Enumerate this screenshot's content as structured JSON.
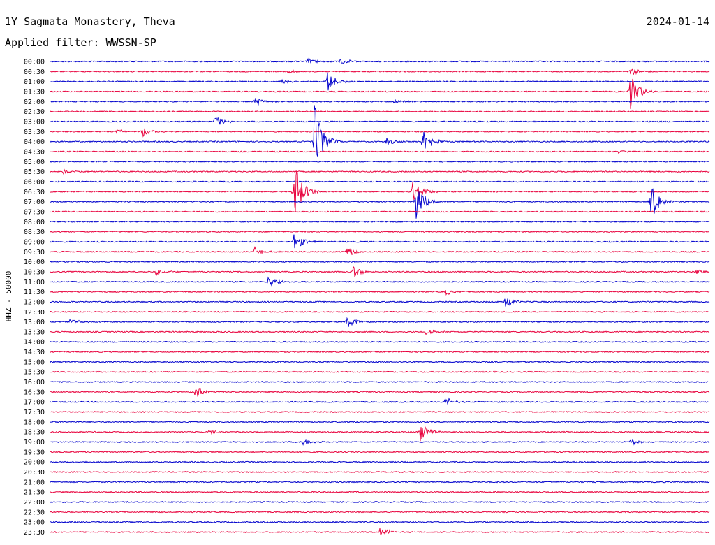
{
  "header": {
    "title": "1Y Sagmata Monastery, Theva",
    "date": "2024-01-14",
    "filter": "Applied filter: WWSSN-SP"
  },
  "chart_data": {
    "type": "line",
    "title": "1Y Sagmata Monastery, Theva",
    "ylabel": "HHZ - 50000",
    "colors": [
      "#0000cc",
      "#e8003c"
    ],
    "rows": [
      "00:00",
      "00:30",
      "01:00",
      "01:30",
      "02:00",
      "02:30",
      "03:00",
      "03:30",
      "04:00",
      "04:30",
      "05:00",
      "05:30",
      "06:00",
      "06:30",
      "07:00",
      "07:30",
      "08:00",
      "08:30",
      "09:00",
      "09:30",
      "10:00",
      "10:30",
      "11:00",
      "11:30",
      "12:00",
      "12:30",
      "13:00",
      "13:30",
      "14:00",
      "14:30",
      "15:00",
      "15:30",
      "16:00",
      "16:30",
      "17:00",
      "17:30",
      "18:00",
      "18:30",
      "19:00",
      "19:30",
      "20:00",
      "20:30",
      "21:00",
      "21:30",
      "22:00",
      "22:30",
      "23:00",
      "23:30"
    ],
    "events": [
      {
        "row": 0,
        "t": 0.39,
        "amp": 5
      },
      {
        "row": 0,
        "t": 0.44,
        "amp": 6
      },
      {
        "row": 1,
        "t": 0.88,
        "amp": 7
      },
      {
        "row": 1,
        "t": 0.36,
        "amp": 3
      },
      {
        "row": 2,
        "t": 0.35,
        "amp": 4
      },
      {
        "row": 2,
        "t": 0.42,
        "amp": 16
      },
      {
        "row": 3,
        "t": 0.88,
        "amp": 28
      },
      {
        "row": 4,
        "t": 0.31,
        "amp": 7
      },
      {
        "row": 4,
        "t": 0.52,
        "amp": 4
      },
      {
        "row": 6,
        "t": 0.25,
        "amp": 10
      },
      {
        "row": 7,
        "t": 0.1,
        "amp": 4
      },
      {
        "row": 7,
        "t": 0.14,
        "amp": 8
      },
      {
        "row": 8,
        "t": 0.4,
        "amp": 60
      },
      {
        "row": 8,
        "t": 0.51,
        "amp": 6
      },
      {
        "row": 8,
        "t": 0.565,
        "amp": 22
      },
      {
        "row": 9,
        "t": 0.86,
        "amp": 3
      },
      {
        "row": 11,
        "t": 0.02,
        "amp": 4
      },
      {
        "row": 13,
        "t": 0.37,
        "amp": 45
      },
      {
        "row": 13,
        "t": 0.55,
        "amp": 20
      },
      {
        "row": 14,
        "t": 0.555,
        "amp": 30
      },
      {
        "row": 14,
        "t": 0.91,
        "amp": 30
      },
      {
        "row": 18,
        "t": 0.37,
        "amp": 14
      },
      {
        "row": 19,
        "t": 0.31,
        "amp": 7
      },
      {
        "row": 19,
        "t": 0.45,
        "amp": 7
      },
      {
        "row": 21,
        "t": 0.16,
        "amp": 5
      },
      {
        "row": 21,
        "t": 0.46,
        "amp": 9
      },
      {
        "row": 21,
        "t": 0.98,
        "amp": 4
      },
      {
        "row": 22,
        "t": 0.33,
        "amp": 10
      },
      {
        "row": 23,
        "t": 0.6,
        "amp": 5
      },
      {
        "row": 24,
        "t": 0.69,
        "amp": 9
      },
      {
        "row": 26,
        "t": 0.03,
        "amp": 5
      },
      {
        "row": 26,
        "t": 0.45,
        "amp": 12
      },
      {
        "row": 27,
        "t": 0.57,
        "amp": 6
      },
      {
        "row": 33,
        "t": 0.22,
        "amp": 9
      },
      {
        "row": 34,
        "t": 0.6,
        "amp": 8
      },
      {
        "row": 37,
        "t": 0.24,
        "amp": 4
      },
      {
        "row": 37,
        "t": 0.56,
        "amp": 16
      },
      {
        "row": 38,
        "t": 0.38,
        "amp": 7
      },
      {
        "row": 38,
        "t": 0.88,
        "amp": 5
      },
      {
        "row": 47,
        "t": 0.5,
        "amp": 8
      }
    ]
  }
}
